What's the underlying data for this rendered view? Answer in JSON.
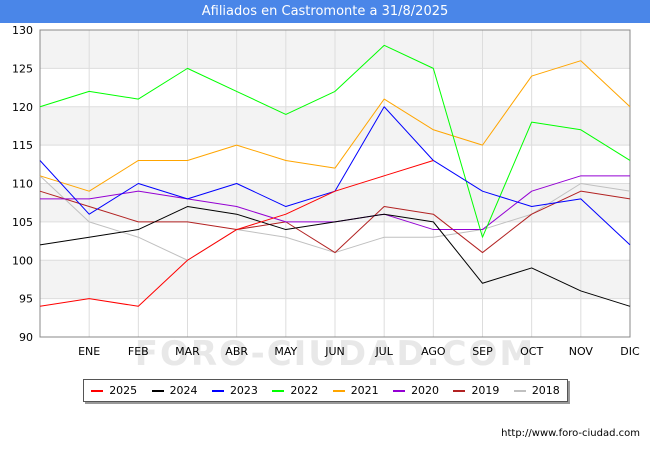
{
  "header": {
    "title": "Afiliados en Castromonte a 31/8/2025"
  },
  "source": "http://www.foro-ciudad.com",
  "watermark": "FORO-CIUDAD.COM",
  "chart_data": {
    "type": "line",
    "title": "Afiliados en Castromonte a 31/8/2025",
    "xlabel": "",
    "ylabel": "",
    "x": [
      "",
      "ENE",
      "FEB",
      "MAR",
      "ABR",
      "MAY",
      "JUN",
      "JUL",
      "AGO",
      "SEP",
      "OCT",
      "NOV",
      "DIC"
    ],
    "ylim": [
      90,
      130
    ],
    "yticks": [
      90,
      95,
      100,
      105,
      110,
      115,
      120,
      125,
      130
    ],
    "grid": true,
    "legend_position": "bottom",
    "series": [
      {
        "name": "2025",
        "color": "#ff0000",
        "values": [
          94,
          95,
          94,
          100,
          104,
          106,
          109,
          111,
          113,
          null,
          null,
          null,
          null
        ]
      },
      {
        "name": "2024",
        "color": "#000000",
        "values": [
          102,
          103,
          104,
          107,
          106,
          104,
          105,
          106,
          105,
          97,
          99,
          96,
          94
        ]
      },
      {
        "name": "2023",
        "color": "#0000ff",
        "values": [
          113,
          106,
          110,
          108,
          110,
          107,
          109,
          120,
          113,
          109,
          107,
          108,
          102
        ]
      },
      {
        "name": "2022",
        "color": "#00ff00",
        "values": [
          120,
          122,
          121,
          125,
          122,
          119,
          122,
          128,
          125,
          103,
          118,
          117,
          113
        ]
      },
      {
        "name": "2021",
        "color": "#ffa500",
        "values": [
          111,
          109,
          113,
          113,
          115,
          113,
          112,
          121,
          117,
          115,
          124,
          126,
          120
        ]
      },
      {
        "name": "2020",
        "color": "#9400d3",
        "values": [
          108,
          108,
          109,
          108,
          107,
          105,
          105,
          106,
          104,
          104,
          109,
          111,
          111
        ]
      },
      {
        "name": "2019",
        "color": "#b22222",
        "values": [
          109,
          107,
          105,
          105,
          104,
          105,
          101,
          107,
          106,
          101,
          106,
          109,
          108
        ]
      },
      {
        "name": "2018",
        "color": "#c0c0c0",
        "values": [
          111,
          105,
          103,
          100,
          104,
          103,
          101,
          103,
          103,
          104,
          106,
          110,
          109
        ]
      }
    ]
  }
}
